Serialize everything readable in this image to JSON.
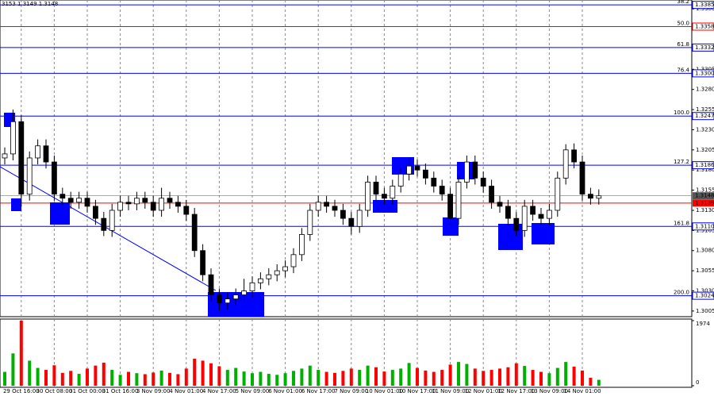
{
  "chart_data": {
    "type": "candlestick",
    "ohlc_text": "3153 1.3149 1.3148",
    "categories": [
      null,
      null,
      "29 Oct 16:00",
      null,
      null,
      null,
      "30 Oct 08:00",
      null,
      null,
      null,
      "31 Oct 00:00",
      null,
      null,
      null,
      "31 Oct 16:00",
      null,
      null,
      null,
      "3 Nov 09:00",
      null,
      null,
      null,
      "4 Nov 01:00",
      null,
      null,
      null,
      "4 Nov 17:00",
      null,
      null,
      null,
      "5 Nov 09:00",
      null,
      null,
      null,
      "6 Nov 01:00",
      null,
      null,
      null,
      "6 Nov 17:00",
      null,
      null,
      null,
      "7 Nov 09:00",
      null,
      null,
      null,
      "10 Nov 01:00",
      null,
      null,
      null,
      "10 Nov 17:00",
      null,
      null,
      null,
      "11 Nov 09:00",
      null,
      null,
      null,
      "12 Nov 01:00",
      null,
      null,
      null,
      "12 Nov 17:00",
      null,
      null,
      null,
      "13 Nov 09:00",
      null,
      null,
      null,
      "14 Nov 01:00",
      null,
      null
    ],
    "open": [
      1.3195,
      1.32,
      1.324,
      1.315,
      1.3195,
      1.321,
      1.319,
      1.315,
      1.3145,
      1.314,
      1.3145,
      1.3135,
      1.312,
      1.3105,
      1.313,
      1.314,
      1.3138,
      1.3145,
      1.314,
      1.313,
      1.3145,
      1.314,
      1.3135,
      1.3125,
      1.308,
      1.305,
      1.3025,
      1.3015,
      1.302,
      1.3025,
      1.303,
      1.304,
      1.3045,
      1.305,
      1.3055,
      1.306,
      1.3075,
      1.31,
      1.313,
      1.314,
      1.3135,
      1.313,
      1.312,
      1.311,
      1.313,
      1.3165,
      1.315,
      1.3145,
      1.316,
      1.3175,
      1.3185,
      1.318,
      1.317,
      1.316,
      1.315,
      1.312,
      1.3165,
      1.319,
      1.317,
      1.316,
      1.314,
      1.3135,
      1.312,
      1.3105,
      1.3135,
      1.3125,
      1.312,
      1.313,
      1.317,
      1.3205,
      1.319,
      1.315,
      1.3145
    ],
    "high": [
      1.3208,
      1.3255,
      1.3248,
      1.3203,
      1.3218,
      1.3218,
      1.3198,
      1.3158,
      1.3153,
      1.3153,
      1.3153,
      1.3143,
      1.3128,
      1.3138,
      1.3148,
      1.3148,
      1.3153,
      1.3153,
      1.3148,
      1.3158,
      1.3153,
      1.3148,
      1.3143,
      1.3133,
      1.3088,
      1.3058,
      1.3033,
      1.3028,
      1.3033,
      1.3045,
      1.3048,
      1.3053,
      1.3058,
      1.3063,
      1.3068,
      1.3083,
      1.3108,
      1.3138,
      1.3148,
      1.3148,
      1.3143,
      1.3138,
      1.3128,
      1.3138,
      1.3173,
      1.3173,
      1.3158,
      1.3168,
      1.3183,
      1.3195,
      1.3193,
      1.3188,
      1.3178,
      1.3168,
      1.3158,
      1.3173,
      1.3198,
      1.3198,
      1.3178,
      1.3168,
      1.3148,
      1.3143,
      1.3128,
      1.3143,
      1.3143,
      1.3133,
      1.3138,
      1.3178,
      1.3212,
      1.3213,
      1.3198,
      1.3158,
      1.3156
    ],
    "low": [
      1.3187,
      1.3192,
      1.3135,
      1.3142,
      1.3187,
      1.3182,
      1.3142,
      1.3137,
      1.3132,
      1.3132,
      1.3127,
      1.3112,
      1.3098,
      1.3097,
      1.3122,
      1.313,
      1.313,
      1.3132,
      1.3122,
      1.3122,
      1.3132,
      1.3127,
      1.3117,
      1.3072,
      1.3042,
      1.3017,
      1.3005,
      1.3007,
      1.3012,
      1.3017,
      1.3022,
      1.3032,
      1.3037,
      1.3042,
      1.3047,
      1.3052,
      1.3067,
      1.3092,
      1.3122,
      1.3127,
      1.3122,
      1.3112,
      1.31,
      1.3102,
      1.3122,
      1.3142,
      1.3137,
      1.3137,
      1.3152,
      1.3167,
      1.3172,
      1.3162,
      1.3152,
      1.3142,
      1.3112,
      1.3112,
      1.3157,
      1.3162,
      1.3152,
      1.3132,
      1.3127,
      1.3112,
      1.3098,
      1.3097,
      1.3117,
      1.3112,
      1.3112,
      1.3122,
      1.3162,
      1.3182,
      1.3142,
      1.3137,
      1.3137
    ],
    "close": [
      1.32,
      1.324,
      1.315,
      1.3195,
      1.321,
      1.319,
      1.315,
      1.3145,
      1.314,
      1.3145,
      1.3135,
      1.312,
      1.3105,
      1.313,
      1.314,
      1.3138,
      1.3145,
      1.314,
      1.313,
      1.3145,
      1.314,
      1.3135,
      1.3125,
      1.308,
      1.305,
      1.3025,
      1.3015,
      1.302,
      1.3025,
      1.303,
      1.304,
      1.3045,
      1.305,
      1.3055,
      1.306,
      1.3075,
      1.31,
      1.313,
      1.314,
      1.3135,
      1.313,
      1.312,
      1.311,
      1.313,
      1.3165,
      1.315,
      1.3145,
      1.316,
      1.3175,
      1.3185,
      1.318,
      1.317,
      1.316,
      1.315,
      1.312,
      1.3165,
      1.319,
      1.317,
      1.316,
      1.314,
      1.3135,
      1.312,
      1.3105,
      1.3135,
      1.3125,
      1.312,
      1.313,
      1.317,
      1.3205,
      1.319,
      1.315,
      1.3145,
      1.3148
    ],
    "candle_up_color": "#ffffff",
    "candle_down_color": "#000000",
    "ylim": [
      1.2998,
      1.3391
    ],
    "yticks": [
      1.3005,
      {
        "value": 1.303,
        "label": "1.3030"
      },
      1.3055,
      {
        "value": 1.308,
        "label": "1.3080"
      },
      1.3105,
      {
        "value": 1.313,
        "label": "1.3130"
      },
      1.3155,
      {
        "value": 1.318,
        "label": "1.3180"
      },
      1.3205,
      {
        "value": 1.323,
        "label": "1.3230"
      },
      1.3255,
      {
        "value": 1.328,
        "label": "1.3280"
      },
      1.3305,
      {
        "value": 1.333,
        "label": "1.3330"
      },
      1.3355,
      {
        "value": 1.338,
        "label": "1.3380"
      }
    ],
    "grid": true,
    "levels": [
      {
        "name": "38.2",
        "value": 1.3385,
        "label": "1.3385",
        "color": "#0000ff"
      },
      {
        "name": "50.0",
        "value": 1.3358,
        "label": "1.3358",
        "color": "#ff0000"
      },
      {
        "name": "61.8",
        "value": 1.3332,
        "label": "1.3332",
        "color": "#0000ff"
      },
      {
        "name": "76.4",
        "value": 1.33,
        "label": "1.3300",
        "color": "#0000ff"
      },
      {
        "name": "100.0",
        "value": 1.3247,
        "label": "1.3247",
        "color": "#0000ff"
      },
      {
        "name": "127.2",
        "value": 1.3186,
        "label": "1.3186",
        "color": "#0000ff"
      },
      {
        "name": "161.8",
        "value": 1.311,
        "label": "1.3110",
        "color": "#0000ff"
      },
      {
        "name": "200.0",
        "value": 1.3024,
        "label": "1.3024",
        "color": "#0000ff"
      }
    ],
    "bid": {
      "value": 1.3148,
      "label": "1.3148",
      "color": "#555555"
    },
    "ask": {
      "value": 1.3139,
      "label": "1.3139",
      "color": "#ff0000"
    },
    "volume": {
      "values": [
        420,
        980,
        1974,
        760,
        540,
        480,
        620,
        390,
        450,
        360,
        520,
        610,
        700,
        480,
        330,
        420,
        380,
        350,
        400,
        460,
        390,
        350,
        520,
        820,
        760,
        680,
        590,
        480,
        540,
        430,
        380,
        420,
        360,
        330,
        380,
        450,
        520,
        610,
        480,
        420,
        390,
        450,
        520,
        480,
        610,
        560,
        430,
        480,
        520,
        690,
        540,
        460,
        420,
        480,
        640,
        720,
        660,
        520,
        450,
        480,
        520,
        560,
        680,
        600,
        480,
        420,
        380,
        540,
        720,
        580,
        460,
        240,
        180
      ],
      "up_color": "#00b000",
      "down_color": "#ff0000",
      "ylim": [
        0,
        1974
      ],
      "yticks": [
        0,
        1974
      ]
    }
  }
}
